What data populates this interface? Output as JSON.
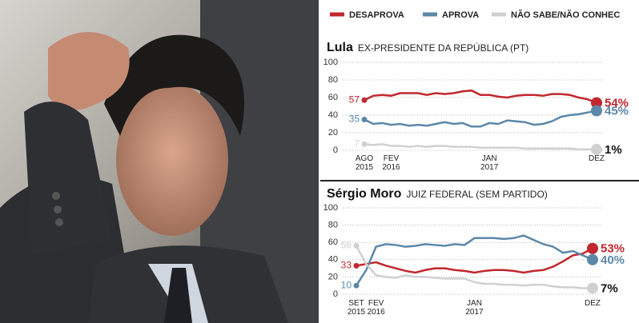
{
  "legend": [
    {
      "name": "DESAPROVA",
      "color": "#c1272d"
    },
    {
      "name": "APROVA",
      "color": "#5b87a8"
    },
    {
      "name": "NÃO SABE/NÃO CONHEC",
      "color": "#d0d0d0"
    }
  ],
  "chart_data": [
    {
      "type": "line",
      "title": "Lula",
      "subtitle": "EX-PRESIDENTE DA REPÚBLICA (PT)",
      "categories": [
        "AGO\n2015",
        null,
        null,
        "FEV\n2016",
        null,
        null,
        null,
        null,
        null,
        null,
        null,
        null,
        null,
        null,
        "JAN\n2017",
        null,
        null,
        null,
        null,
        null,
        null,
        null,
        null,
        null,
        null,
        null,
        "DEZ"
      ],
      "ylim": [
        0,
        100
      ],
      "yticks": [
        0,
        20,
        40,
        60,
        80,
        100
      ],
      "grid": true,
      "series": [
        {
          "values": [
            57,
            62,
            63,
            62,
            65,
            65,
            65,
            63,
            65,
            64,
            65,
            67,
            68,
            63,
            63,
            61,
            60,
            62,
            63,
            63,
            62,
            64,
            64,
            63,
            60,
            58,
            54
          ],
          "value_labels": [
            null,
            null,
            null,
            null,
            null,
            null,
            null,
            null,
            null,
            null,
            null,
            null,
            null,
            null,
            null,
            null,
            null,
            null,
            null,
            null,
            null,
            null,
            null,
            null,
            null,
            null,
            "54%"
          ]
        },
        {
          "values": [
            35,
            30,
            31,
            29,
            30,
            28,
            29,
            28,
            30,
            32,
            30,
            31,
            27,
            27,
            31,
            30,
            34,
            33,
            32,
            29,
            30,
            33,
            38,
            40,
            41,
            43,
            45
          ],
          "value_labels": [
            null,
            null,
            null,
            null,
            null,
            null,
            null,
            null,
            null,
            null,
            null,
            null,
            null,
            null,
            null,
            null,
            null,
            null,
            null,
            null,
            null,
            null,
            null,
            null,
            null,
            null,
            "45%"
          ]
        },
        {
          "values": [
            7,
            6,
            7,
            5,
            5,
            4,
            5,
            4,
            5,
            5,
            4,
            4,
            4,
            3,
            3,
            3,
            3,
            3,
            2,
            2,
            2,
            2,
            2,
            2,
            1,
            1,
            1
          ],
          "value_labels": [
            null,
            null,
            null,
            null,
            null,
            null,
            null,
            null,
            null,
            null,
            null,
            null,
            null,
            null,
            null,
            null,
            null,
            null,
            null,
            null,
            null,
            null,
            null,
            null,
            null,
            null,
            "1%"
          ]
        }
      ]
    },
    {
      "type": "line",
      "title": "Sérgio Moro",
      "subtitle": "JUIZ FEDERAL (SEM PARTIDO)",
      "categories": [
        "SET\n2015",
        null,
        "FEV\n2016",
        null,
        null,
        null,
        null,
        null,
        null,
        null,
        null,
        null,
        "JAN\n2017",
        null,
        null,
        null,
        null,
        null,
        null,
        null,
        null,
        null,
        null,
        null,
        "DEZ"
      ],
      "ylim": [
        0,
        100
      ],
      "yticks": [
        0,
        20,
        40,
        60,
        80,
        100
      ],
      "grid": true,
      "series": [
        {
          "values": [
            33,
            35,
            37,
            33,
            30,
            27,
            25,
            28,
            30,
            30,
            28,
            27,
            25,
            27,
            28,
            28,
            27,
            25,
            27,
            28,
            32,
            38,
            45,
            47,
            53
          ],
          "value_labels": [
            null,
            null,
            null,
            null,
            null,
            null,
            null,
            null,
            null,
            null,
            null,
            null,
            null,
            null,
            null,
            null,
            null,
            null,
            null,
            null,
            null,
            null,
            null,
            null,
            "53%"
          ]
        },
        {
          "values": [
            10,
            28,
            55,
            58,
            57,
            55,
            56,
            58,
            57,
            56,
            58,
            57,
            65,
            65,
            65,
            64,
            65,
            68,
            63,
            58,
            55,
            48,
            50,
            45,
            40
          ],
          "value_labels": [
            null,
            null,
            null,
            null,
            null,
            null,
            null,
            null,
            null,
            null,
            null,
            null,
            null,
            null,
            null,
            null,
            null,
            null,
            null,
            null,
            null,
            null,
            null,
            null,
            "40%"
          ]
        },
        {
          "values": [
            56,
            35,
            22,
            20,
            19,
            22,
            20,
            20,
            19,
            18,
            18,
            18,
            14,
            12,
            12,
            11,
            11,
            10,
            11,
            11,
            9,
            8,
            8,
            7,
            7
          ],
          "value_labels": [
            null,
            null,
            null,
            null,
            null,
            null,
            null,
            null,
            null,
            null,
            null,
            null,
            null,
            null,
            null,
            null,
            null,
            null,
            null,
            null,
            null,
            null,
            null,
            null,
            "7%"
          ]
        }
      ]
    }
  ]
}
